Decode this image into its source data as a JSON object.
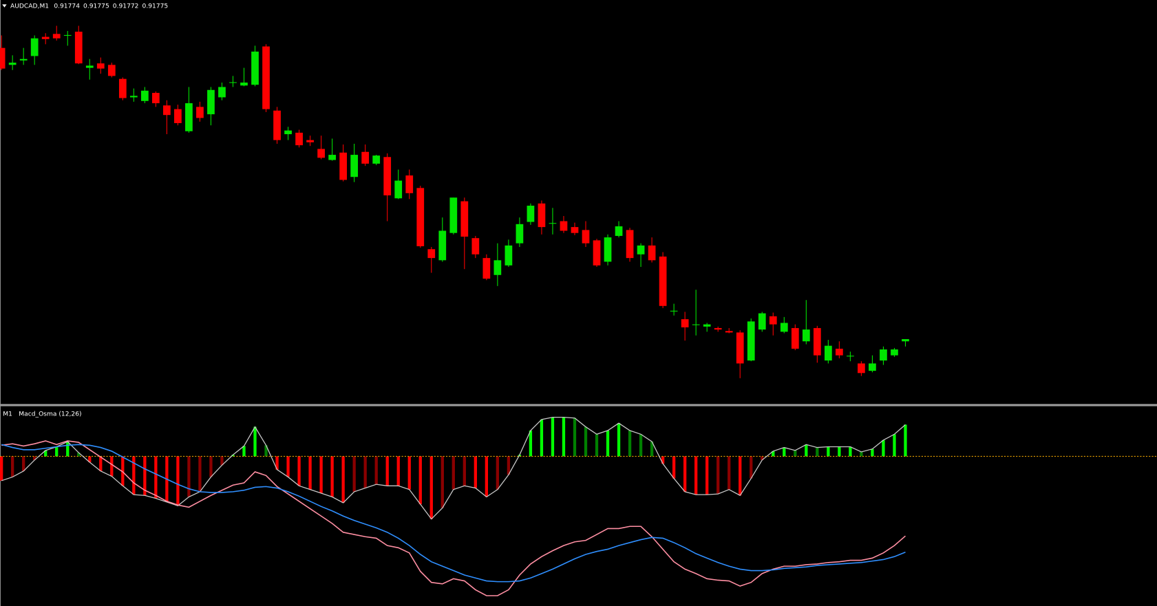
{
  "chart_data": [
    {
      "type": "candlestick",
      "symbol": "AUDCAD,M1",
      "quote": [
        0.91774,
        0.91775,
        0.91772,
        0.91775
      ],
      "up_color": "#00e600",
      "down_color": "#ff0000",
      "ylim": [
        0.91687,
        0.92235
      ],
      "open": [
        0.9217,
        0.92147,
        0.92153,
        0.92159,
        0.92185,
        0.92189,
        0.92187,
        0.92192,
        0.92143,
        0.92149,
        0.92147,
        0.92128,
        0.92103,
        0.92098,
        0.92109,
        0.92092,
        0.92087,
        0.92057,
        0.9209,
        0.9208,
        0.92103,
        0.92123,
        0.92119,
        0.9212,
        0.92172,
        0.92085,
        0.92053,
        0.92055,
        0.92045,
        0.92033,
        0.92018,
        0.92028,
        0.91995,
        0.92029,
        0.92013,
        0.92022,
        0.91966,
        0.91997,
        0.9198,
        0.91897,
        0.91882,
        0.91919,
        0.91962,
        0.91912,
        0.91885,
        0.91862,
        0.91875,
        0.91905,
        0.91934,
        0.91959,
        0.91932,
        0.91935,
        0.91927,
        0.91923,
        0.91909,
        0.9188,
        0.91915,
        0.91923,
        0.9189,
        0.91902,
        0.91887,
        0.91813,
        0.91802,
        0.91794,
        0.91792,
        0.9179,
        0.91786,
        0.91784,
        0.91746,
        0.91788,
        0.91806,
        0.91785,
        0.9179,
        0.91772,
        0.9179,
        0.91746,
        0.91762,
        0.91752,
        0.91742,
        0.91732,
        0.91746,
        0.91753,
        0.91772
      ],
      "high": [
        0.92187,
        0.9216,
        0.9217,
        0.92187,
        0.9219,
        0.922,
        0.92193,
        0.922,
        0.92155,
        0.92157,
        0.9215,
        0.9213,
        0.92115,
        0.92117,
        0.92111,
        0.92099,
        0.92093,
        0.92117,
        0.92097,
        0.92117,
        0.92123,
        0.92132,
        0.92143,
        0.92173,
        0.92175,
        0.9209,
        0.92063,
        0.92059,
        0.92051,
        0.92051,
        0.92047,
        0.92039,
        0.9204,
        0.92039,
        0.92025,
        0.92027,
        0.92005,
        0.92005,
        0.91983,
        0.919,
        0.9194,
        0.91967,
        0.91967,
        0.91915,
        0.9189,
        0.91905,
        0.9191,
        0.9194,
        0.91959,
        0.91963,
        0.91953,
        0.91942,
        0.91933,
        0.91935,
        0.91911,
        0.91917,
        0.91935,
        0.91926,
        0.91905,
        0.91913,
        0.91893,
        0.91823,
        0.91812,
        0.91842,
        0.91797,
        0.91792,
        0.9179,
        0.91787,
        0.91803,
        0.91812,
        0.91811,
        0.91805,
        0.91795,
        0.91828,
        0.91793,
        0.91774,
        0.91772,
        0.91758,
        0.91745,
        0.91753,
        0.91765,
        0.91763,
        0.91775
      ],
      "low": [
        0.9214,
        0.9214,
        0.92147,
        0.92147,
        0.92175,
        0.9218,
        0.92173,
        0.92148,
        0.92127,
        0.92135,
        0.9213,
        0.92099,
        0.92097,
        0.92095,
        0.9209,
        0.92053,
        0.92065,
        0.92055,
        0.9207,
        0.92065,
        0.92099,
        0.92117,
        0.92118,
        0.92118,
        0.92083,
        0.9204,
        0.92045,
        0.92035,
        0.92037,
        0.92019,
        0.92017,
        0.91989,
        0.91988,
        0.9201,
        0.92011,
        0.91935,
        0.91965,
        0.91965,
        0.91899,
        0.91865,
        0.9188,
        0.91917,
        0.9187,
        0.91885,
        0.91855,
        0.91847,
        0.91873,
        0.919,
        0.9193,
        0.91917,
        0.91917,
        0.91919,
        0.91916,
        0.919,
        0.91873,
        0.91875,
        0.91913,
        0.9188,
        0.91873,
        0.91879,
        0.91817,
        0.91807,
        0.91773,
        0.9178,
        0.91785,
        0.91785,
        0.91783,
        0.91722,
        0.91745,
        0.91785,
        0.9178,
        0.91783,
        0.9176,
        0.91768,
        0.91743,
        0.91742,
        0.91749,
        0.91745,
        0.91725,
        0.9173,
        0.9174,
        0.91751,
        0.91765
      ],
      "close": [
        0.92142,
        0.9215,
        0.92155,
        0.92183,
        0.92182,
        0.92183,
        0.92187,
        0.92149,
        0.92146,
        0.92142,
        0.92132,
        0.92102,
        0.92105,
        0.92112,
        0.92095,
        0.92079,
        0.92068,
        0.92095,
        0.92075,
        0.92113,
        0.92117,
        0.92123,
        0.92123,
        0.92165,
        0.92087,
        0.92045,
        0.92058,
        0.92038,
        0.92042,
        0.92021,
        0.92025,
        0.91991,
        0.92025,
        0.92013,
        0.92024,
        0.9197,
        0.9199,
        0.91973,
        0.91901,
        0.91885,
        0.91922,
        0.91967,
        0.91914,
        0.9189,
        0.91857,
        0.91882,
        0.91902,
        0.91931,
        0.91956,
        0.91927,
        0.91932,
        0.91922,
        0.91919,
        0.91905,
        0.91875,
        0.91913,
        0.91928,
        0.91885,
        0.91902,
        0.91882,
        0.9182,
        0.91813,
        0.91791,
        0.91795,
        0.91795,
        0.91788,
        0.91784,
        0.91742,
        0.91799,
        0.9181,
        0.91795,
        0.91797,
        0.91762,
        0.91788,
        0.91753,
        0.91766,
        0.91753,
        0.91752,
        0.91729,
        0.91742,
        0.91761,
        0.91761,
        0.91775
      ]
    },
    {
      "type": "macd",
      "timeframe": "M1",
      "title": "Macd_Osma (12,26)",
      "ylim": [
        -0.00203,
        0.00067
      ],
      "colors": {
        "up_rising": "#00ff00",
        "up_falling": "#008000",
        "down_falling": "#ff0000",
        "down_rising": "#8b0000"
      },
      "outline_color": "#c8c8c8",
      "zero_line_color": "#e8a000",
      "histogram": [
        -0.00033,
        -0.00028,
        -0.0002,
        -5e-05,
        8e-05,
        0.00013,
        0.0002,
        5e-05,
        -8e-05,
        -0.0002,
        -0.00027,
        -0.0004,
        -0.00052,
        -0.00053,
        -0.00057,
        -0.00062,
        -0.00067,
        -0.00055,
        -0.00048,
        -0.00028,
        -0.00012,
        2e-05,
        0.00014,
        0.0004,
        0.00015,
        -0.00018,
        -0.00028,
        -0.0004,
        -0.00045,
        -0.0005,
        -0.00055,
        -0.00063,
        -0.00048,
        -0.00043,
        -0.00038,
        -0.0004,
        -0.0004,
        -0.00045,
        -0.00065,
        -0.00085,
        -0.0007,
        -0.00045,
        -0.0004,
        -0.00043,
        -0.00055,
        -0.00045,
        -0.00025,
        2e-05,
        0.00035,
        0.0005,
        0.00053,
        0.00053,
        0.00052,
        0.0004,
        0.0003,
        0.00035,
        0.00045,
        0.00035,
        0.0003,
        0.0002,
        -0.0001,
        -0.0003,
        -0.00048,
        -0.00052,
        -0.00052,
        -0.00051,
        -0.00045,
        -0.00053,
        -0.0003,
        -5e-05,
        7e-05,
        0.00012,
        8e-05,
        0.00016,
        0.00012,
        0.00013,
        0.00013,
        0.00013,
        6e-05,
        0.0001,
        0.00022,
        0.0003,
        0.00043
      ],
      "lines": [
        {
          "color": "#ff8fa3",
          "values": [
            0.00015,
            0.00017,
            0.00014,
            0.00017,
            0.00021,
            0.00016,
            0.00021,
            0.00019,
            9e-05,
            -1e-05,
            -0.00011,
            -0.00021,
            -0.00036,
            -0.00046,
            -0.00053,
            -0.00061,
            -0.00066,
            -0.00069,
            -0.00061,
            -0.00053,
            -0.00046,
            -0.00039,
            -0.00036,
            -0.00021,
            -0.00026,
            -0.00041,
            -0.00051,
            -0.00061,
            -0.00071,
            -0.00081,
            -0.00091,
            -0.00103,
            -0.00106,
            -0.00109,
            -0.00111,
            -0.00121,
            -0.00124,
            -0.00131,
            -0.00156,
            -0.00171,
            -0.00173,
            -0.00166,
            -0.00169,
            -0.00181,
            -0.00189,
            -0.00189,
            -0.00181,
            -0.00161,
            -0.00146,
            -0.00136,
            -0.00128,
            -0.00121,
            -0.00116,
            -0.00114,
            -0.00106,
            -0.00098,
            -0.00098,
            -0.00095,
            -0.00095,
            -0.00109,
            -0.00126,
            -0.00143,
            -0.00153,
            -0.00159,
            -0.00166,
            -0.00168,
            -0.00169,
            -0.00176,
            -0.00171,
            -0.00159,
            -0.00153,
            -0.00149,
            -0.00149,
            -0.00147,
            -0.00146,
            -0.00144,
            -0.00143,
            -0.00141,
            -0.00141,
            -0.00138,
            -0.00131,
            -0.00121,
            -0.00108
          ]
        },
        {
          "color": "#2f8fff",
          "values": [
            0.00016,
            0.00012,
            9e-05,
            9e-05,
            0.00011,
            0.00013,
            0.00015,
            0.00016,
            0.00015,
            0.00012,
            7e-05,
            -1e-05,
            -9e-05,
            -0.00017,
            -0.00024,
            -0.00031,
            -0.00038,
            -0.00044,
            -0.00048,
            -0.00049,
            -0.00049,
            -0.00048,
            -0.00046,
            -0.00042,
            -0.00041,
            -0.00043,
            -0.00048,
            -0.00054,
            -0.00061,
            -0.00068,
            -0.00074,
            -0.00081,
            -0.00087,
            -0.00092,
            -0.00097,
            -0.00103,
            -0.00111,
            -0.00121,
            -0.00133,
            -0.00143,
            -0.00149,
            -0.00155,
            -0.00161,
            -0.00165,
            -0.00169,
            -0.0017,
            -0.0017,
            -0.00169,
            -0.00165,
            -0.00159,
            -0.00153,
            -0.00146,
            -0.00139,
            -0.00133,
            -0.00129,
            -0.00126,
            -0.00121,
            -0.00117,
            -0.00113,
            -0.0011,
            -0.00111,
            -0.00117,
            -0.00124,
            -0.00132,
            -0.00138,
            -0.00144,
            -0.00149,
            -0.00153,
            -0.00155,
            -0.00155,
            -0.00154,
            -0.00152,
            -0.00151,
            -0.0015,
            -0.00148,
            -0.00147,
            -0.00146,
            -0.00145,
            -0.00144,
            -0.00142,
            -0.0014,
            -0.00136,
            -0.0013
          ]
        }
      ]
    }
  ]
}
